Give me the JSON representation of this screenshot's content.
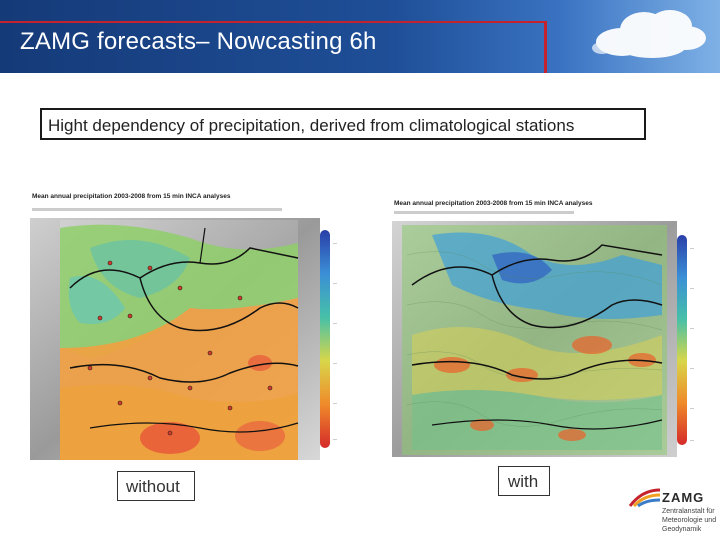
{
  "header": {
    "title": "ZAMG forecasts– Nowcasting  6h"
  },
  "subtitle": "Hight dependency of precipitation, derived from climatological stations",
  "maps": {
    "left": {
      "title": "Mean annual precipitation 2003-2008 from 15 min INCA analyses"
    },
    "right": {
      "title": "Mean annual precipitation 2003-2008 from 15 min INCA analyses"
    }
  },
  "captions": {
    "left": "without",
    "right": "with"
  },
  "logo": {
    "name": "ZAMG",
    "line1": "Zentralanstalt für",
    "line2": "Meteorologie und",
    "line3": "Geodynamik"
  },
  "colors": {
    "header": "#1f4f98",
    "accent_red": "#c4232e"
  }
}
